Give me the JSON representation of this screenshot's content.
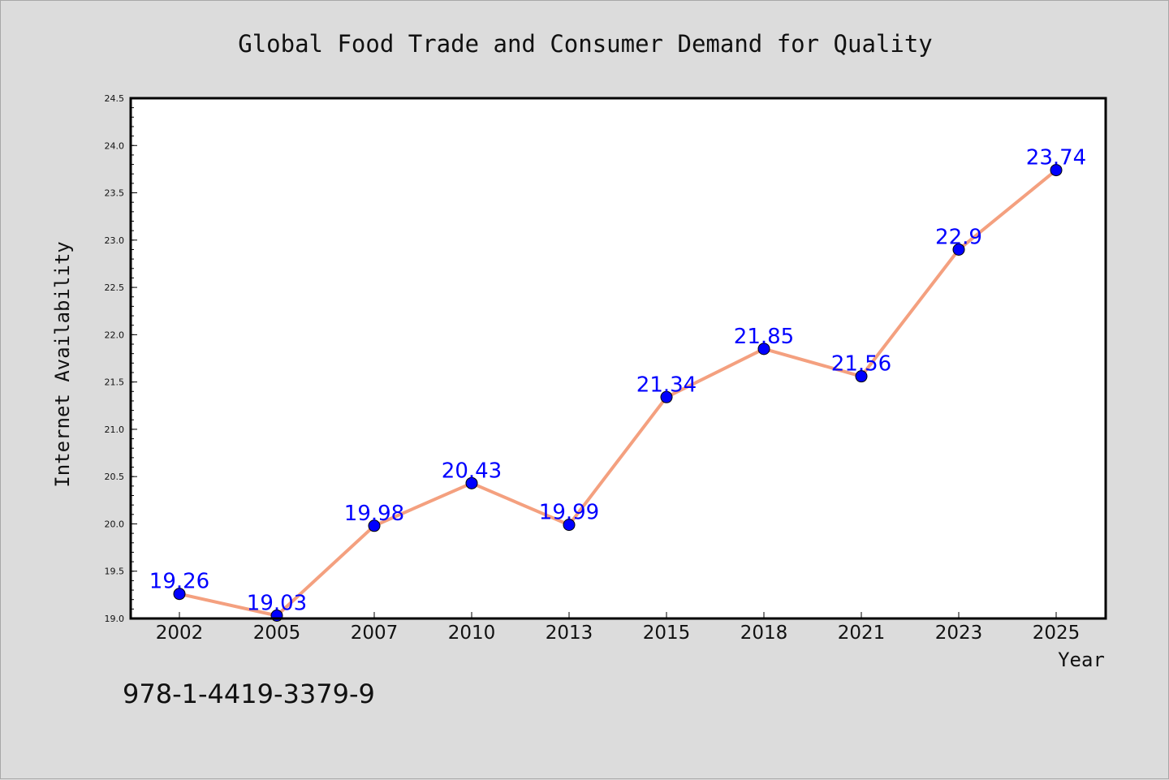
{
  "chart_data": {
    "type": "line",
    "title": "Global Food Trade and Consumer Demand for Quality",
    "xlabel": "Year",
    "ylabel": "Internet Availability",
    "categories": [
      "2002",
      "2005",
      "2007",
      "2010",
      "2013",
      "2015",
      "2018",
      "2021",
      "2023",
      "2025"
    ],
    "values": [
      19.26,
      19.03,
      19.98,
      20.43,
      19.99,
      21.34,
      21.85,
      21.56,
      22.9,
      23.74
    ],
    "data_labels": [
      "19.26",
      "19.03",
      "19.98",
      "20.43",
      "19.99",
      "21.34",
      "21.85",
      "21.56",
      "22.9",
      "23.74"
    ],
    "ylim": [
      19.0,
      24.5
    ],
    "yticks": [
      "19.0",
      "19.5",
      "20.0",
      "20.5",
      "21.0",
      "21.5",
      "22.0",
      "22.5",
      "23.0",
      "23.5",
      "24.0",
      "24.5"
    ],
    "grid": false,
    "line_color": "#f4a07f",
    "marker_color": "#0000ff",
    "label_color": "#0000ff"
  },
  "annotation": "978-1-4419-3379-9",
  "colors": {
    "background": "#dcdcdc",
    "plot_background": "#ffffff"
  }
}
